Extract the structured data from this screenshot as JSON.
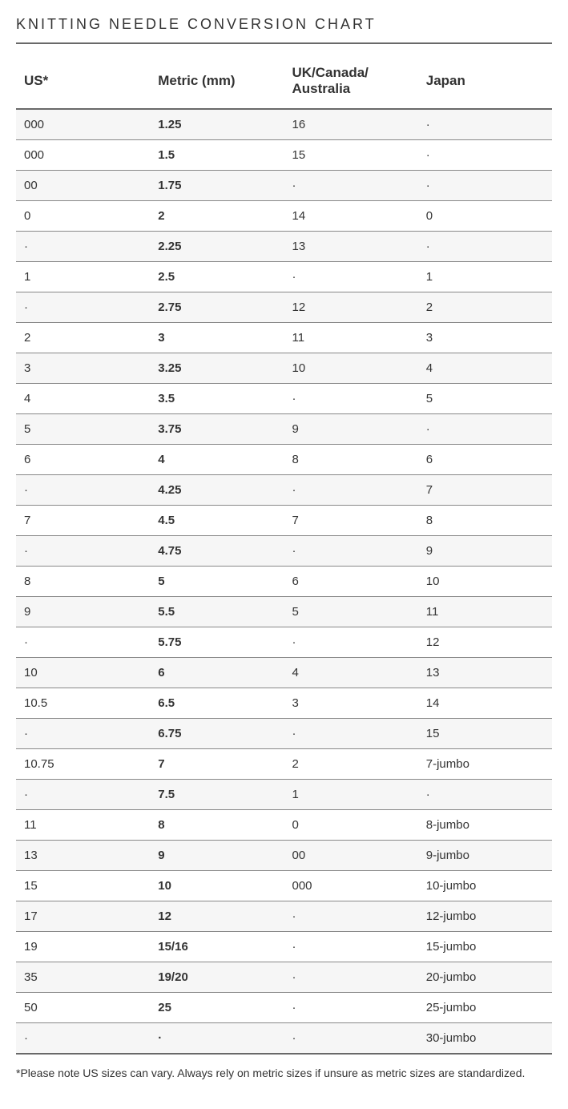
{
  "title": "KNITTING NEEDLE CONVERSION CHART",
  "columns": [
    "US*",
    "Metric (mm)",
    "UK/Canada/\nAustralia",
    "Japan"
  ],
  "rows": [
    [
      "000",
      "1.25",
      "16",
      "·"
    ],
    [
      "000",
      "1.5",
      "15",
      "·"
    ],
    [
      "00",
      "1.75",
      "·",
      "·"
    ],
    [
      "0",
      "2",
      "14",
      "0"
    ],
    [
      "·",
      "2.25",
      "13",
      "·"
    ],
    [
      "1",
      "2.5",
      "·",
      "1"
    ],
    [
      "·",
      "2.75",
      "12",
      "2"
    ],
    [
      "2",
      "3",
      "11",
      "3"
    ],
    [
      "3",
      "3.25",
      "10",
      "4"
    ],
    [
      "4",
      "3.5",
      "·",
      "5"
    ],
    [
      "5",
      "3.75",
      "9",
      "·"
    ],
    [
      "6",
      "4",
      "8",
      "6"
    ],
    [
      "·",
      "4.25",
      "·",
      "7"
    ],
    [
      "7",
      "4.5",
      "7",
      "8"
    ],
    [
      "·",
      "4.75",
      "·",
      "9"
    ],
    [
      "8",
      "5",
      "6",
      "10"
    ],
    [
      "9",
      "5.5",
      "5",
      "11"
    ],
    [
      "·",
      "5.75",
      "·",
      "12"
    ],
    [
      "10",
      "6",
      "4",
      "13"
    ],
    [
      "10.5",
      "6.5",
      "3",
      "14"
    ],
    [
      "·",
      "6.75",
      "·",
      "15"
    ],
    [
      "10.75",
      "7",
      "2",
      "7-jumbo"
    ],
    [
      "·",
      "7.5",
      "1",
      "·"
    ],
    [
      "11",
      "8",
      "0",
      "8-jumbo"
    ],
    [
      "13",
      "9",
      "00",
      "9-jumbo"
    ],
    [
      "15",
      "10",
      "000",
      "10-jumbo"
    ],
    [
      "17",
      "12",
      "·",
      "12-jumbo"
    ],
    [
      "19",
      "15/16",
      "·",
      "15-jumbo"
    ],
    [
      "35",
      "19/20",
      "·",
      "20-jumbo"
    ],
    [
      "50",
      "25",
      "·",
      "25-jumbo"
    ],
    [
      "·",
      "·",
      "·",
      "30-jumbo"
    ]
  ],
  "footnote": "*Please note US sizes can vary. Always rely on metric sizes if unsure as metric sizes are standardized.",
  "styling": {
    "background_color": "#ffffff",
    "row_alt_bg": "#f6f6f6",
    "text_color": "#333333",
    "header_border_color": "#696969",
    "row_border_color": "#888888",
    "title_fontsize": 18,
    "title_letter_spacing": 3,
    "header_fontsize": 17,
    "cell_fontsize": 15,
    "footnote_fontsize": 14,
    "metric_column_bold": true,
    "column_widths_pct": [
      25,
      25,
      25,
      25
    ]
  }
}
